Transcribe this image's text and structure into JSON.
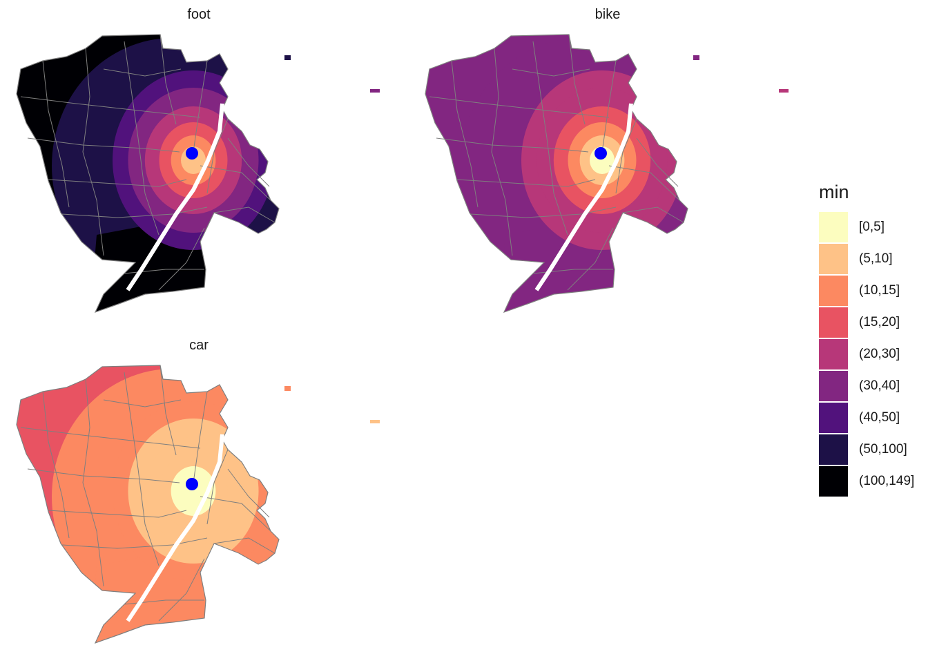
{
  "legend": {
    "title": "min",
    "classes": [
      {
        "label": "[0,5]",
        "color": "#FCFDBF"
      },
      {
        "label": "(5,10]",
        "color": "#FEC287"
      },
      {
        "label": "(10,15]",
        "color": "#FC8961"
      },
      {
        "label": "(15,20]",
        "color": "#E85362"
      },
      {
        "label": "(20,30]",
        "color": "#B73779"
      },
      {
        "label": "(30,40]",
        "color": "#822681"
      },
      {
        "label": "(40,50]",
        "color": "#51127C"
      },
      {
        "label": "(50,100]",
        "color": "#1D1147"
      },
      {
        "label": "(100,149]",
        "color": "#000004"
      }
    ]
  },
  "panels": [
    {
      "id": "foot",
      "title": "foot",
      "zones": {
        "outer": "#000004",
        "mid": "#1D1147",
        "ring1": "#51127C",
        "ring2": "#822681",
        "ring3": "#B73779",
        "ring4": "#E85362",
        "ring5": "#FC8961",
        "core": "#FEC287",
        "south": "#000004"
      }
    },
    {
      "id": "bike",
      "title": "bike",
      "zones": {
        "outer": "#822681",
        "mid": "#822681",
        "ring1": "#B73779",
        "ring2": "#B73779",
        "ring3": "#E85362",
        "ring4": "#FC8961",
        "ring5": "#FEC287",
        "core": "#FCFDBF",
        "south": "#822681"
      }
    },
    {
      "id": "car",
      "title": "car",
      "zones": {
        "outer": "#E85362",
        "mid": "#FC8961",
        "ring1": "#FC8961",
        "ring2": "#FEC287",
        "ring3": "#FEC287",
        "ring4": "#FEC287",
        "ring5": "#FCFDBF",
        "core": "#FCFDBF",
        "south": "#FC8961"
      }
    }
  ],
  "origin_marker_color": "#0000FF",
  "boundary_color": "#7F7F7F"
}
